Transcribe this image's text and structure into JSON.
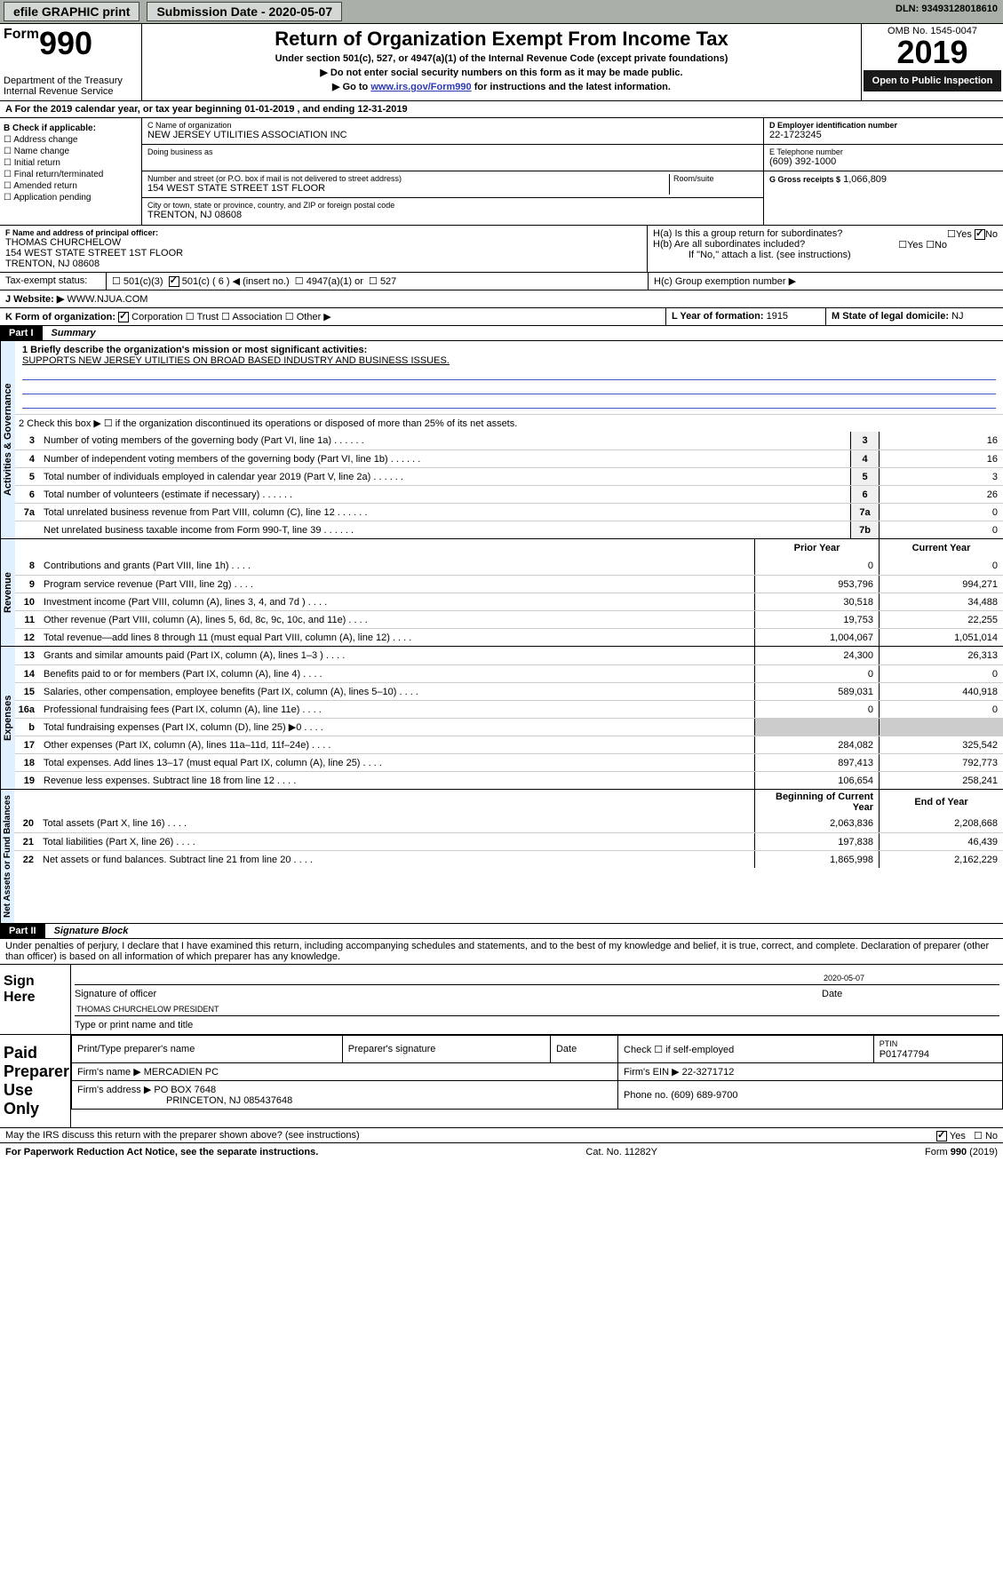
{
  "top": {
    "efile": "efile GRAPHIC print",
    "sub_label": "Submission Date - 2020-05-07",
    "dln": "DLN: 93493128018610"
  },
  "header": {
    "form_prefix": "Form",
    "form_num": "990",
    "dept": "Department of the Treasury Internal Revenue Service",
    "title": "Return of Organization Exempt From Income Tax",
    "sub1": "Under section 501(c), 527, or 4947(a)(1) of the Internal Revenue Code (except private foundations)",
    "sub2": "▶ Do not enter social security numbers on this form as it may be made public.",
    "sub3_pre": "▶ Go to ",
    "sub3_link": "www.irs.gov/Form990",
    "sub3_post": " for instructions and the latest information.",
    "omb": "OMB No. 1545-0047",
    "year": "2019",
    "inspect": "Open to Public Inspection"
  },
  "period": "A For the 2019 calendar year, or tax year beginning 01-01-2019    , and ending 12-31-2019",
  "checkB": {
    "title": "B Check if applicable:",
    "items": [
      "Address change",
      "Name change",
      "Initial return",
      "Final return/terminated",
      "Amended return",
      "Application pending"
    ]
  },
  "org": {
    "c_lbl": "C Name of organization",
    "c_val": "NEW JERSEY UTILITIES ASSOCIATION INC",
    "dba_lbl": "Doing business as",
    "addr_lbl": "Number and street (or P.O. box if mail is not delivered to street address)",
    "room_lbl": "Room/suite",
    "addr_val": "154 WEST STATE STREET 1ST FLOOR",
    "city_lbl": "City or town, state or province, country, and ZIP or foreign postal code",
    "city_val": "TRENTON, NJ  08608"
  },
  "boxD": {
    "lbl": "D Employer identification number",
    "val": "22-1723245"
  },
  "boxE": {
    "lbl": "E Telephone number",
    "val": "(609) 392-1000"
  },
  "boxG": {
    "lbl": "G Gross receipts $",
    "val": "1,066,809"
  },
  "officer": {
    "lbl": "F  Name and address of principal officer:",
    "name": "THOMAS CHURCHELOW",
    "addr1": "154 WEST STATE STREET 1ST FLOOR",
    "addr2": "TRENTON, NJ  08608"
  },
  "boxH": {
    "a": "H(a)  Is this a group return for subordinates?",
    "b": "H(b)  Are all subordinates included?",
    "note": "If \"No,\" attach a list. (see instructions)",
    "c": "H(c)  Group exemption number ▶",
    "yes": "Yes",
    "no": "No"
  },
  "taxStatus": {
    "lbl": "Tax-exempt status:",
    "o1": "501(c)(3)",
    "o2": "501(c) ( 6 ) ◀ (insert no.)",
    "o3": "4947(a)(1) or",
    "o4": "527"
  },
  "boxJ": {
    "lbl": "J Website: ▶",
    "val": "WWW.NJUA.COM"
  },
  "boxK": {
    "lbl": "K Form of organization:",
    "o1": "Corporation",
    "o2": "Trust",
    "o3": "Association",
    "o4": "Other ▶"
  },
  "boxL": {
    "lbl": "L Year of formation:",
    "val": "1915"
  },
  "boxM": {
    "lbl": "M State of legal domicile:",
    "val": "NJ"
  },
  "part1": {
    "bar": "Part I",
    "title": "Summary"
  },
  "summary": {
    "l1_lbl": "1  Briefly describe the organization's mission or most significant activities:",
    "l1_val": "SUPPORTS NEW JERSEY UTILITIES ON BROAD BASED INDUSTRY AND BUSINESS ISSUES.",
    "l2": "2   Check this box ▶ ☐  if the organization discontinued its operations or disposed of more than 25% of its net assets.",
    "activities_tab": "Activities & Governance",
    "revenue_tab": "Revenue",
    "expenses_tab": "Expenses",
    "netassets_tab": "Net Assets or Fund Balances",
    "col_prior": "Prior Year",
    "col_curr": "Current Year",
    "col_begin": "Beginning of Current Year",
    "col_end": "End of Year",
    "lines_single": [
      {
        "n": "3",
        "t": "Number of voting members of the governing body (Part VI, line 1a)",
        "b": "3",
        "v": "16"
      },
      {
        "n": "4",
        "t": "Number of independent voting members of the governing body (Part VI, line 1b)",
        "b": "4",
        "v": "16"
      },
      {
        "n": "5",
        "t": "Total number of individuals employed in calendar year 2019 (Part V, line 2a)",
        "b": "5",
        "v": "3"
      },
      {
        "n": "6",
        "t": "Total number of volunteers (estimate if necessary)",
        "b": "6",
        "v": "26"
      },
      {
        "n": "7a",
        "t": "Total unrelated business revenue from Part VIII, column (C), line 12",
        "b": "7a",
        "v": "0"
      },
      {
        "n": "",
        "t": "Net unrelated business taxable income from Form 990-T, line 39",
        "b": "7b",
        "v": "0"
      }
    ],
    "lines_revenue": [
      {
        "n": "8",
        "t": "Contributions and grants (Part VIII, line 1h)",
        "p": "0",
        "c": "0"
      },
      {
        "n": "9",
        "t": "Program service revenue (Part VIII, line 2g)",
        "p": "953,796",
        "c": "994,271"
      },
      {
        "n": "10",
        "t": "Investment income (Part VIII, column (A), lines 3, 4, and 7d )",
        "p": "30,518",
        "c": "34,488"
      },
      {
        "n": "11",
        "t": "Other revenue (Part VIII, column (A), lines 5, 6d, 8c, 9c, 10c, and 11e)",
        "p": "19,753",
        "c": "22,255"
      },
      {
        "n": "12",
        "t": "Total revenue—add lines 8 through 11 (must equal Part VIII, column (A), line 12)",
        "p": "1,004,067",
        "c": "1,051,014"
      }
    ],
    "lines_expenses": [
      {
        "n": "13",
        "t": "Grants and similar amounts paid (Part IX, column (A), lines 1–3 )",
        "p": "24,300",
        "c": "26,313"
      },
      {
        "n": "14",
        "t": "Benefits paid to or for members (Part IX, column (A), line 4)",
        "p": "0",
        "c": "0"
      },
      {
        "n": "15",
        "t": "Salaries, other compensation, employee benefits (Part IX, column (A), lines 5–10)",
        "p": "589,031",
        "c": "440,918"
      },
      {
        "n": "16a",
        "t": "Professional fundraising fees (Part IX, column (A), line 11e)",
        "p": "0",
        "c": "0"
      },
      {
        "n": "b",
        "t": "Total fundraising expenses (Part IX, column (D), line 25) ▶0",
        "p": "",
        "c": "",
        "gray": true
      },
      {
        "n": "17",
        "t": "Other expenses (Part IX, column (A), lines 11a–11d, 11f–24e)",
        "p": "284,082",
        "c": "325,542"
      },
      {
        "n": "18",
        "t": "Total expenses. Add lines 13–17 (must equal Part IX, column (A), line 25)",
        "p": "897,413",
        "c": "792,773"
      },
      {
        "n": "19",
        "t": "Revenue less expenses. Subtract line 18 from line 12",
        "p": "106,654",
        "c": "258,241"
      }
    ],
    "lines_netassets": [
      {
        "n": "20",
        "t": "Total assets (Part X, line 16)",
        "p": "2,063,836",
        "c": "2,208,668"
      },
      {
        "n": "21",
        "t": "Total liabilities (Part X, line 26)",
        "p": "197,838",
        "c": "46,439"
      },
      {
        "n": "22",
        "t": "Net assets or fund balances. Subtract line 21 from line 20",
        "p": "1,865,998",
        "c": "2,162,229"
      }
    ]
  },
  "part2": {
    "bar": "Part II",
    "title": "Signature Block"
  },
  "penalty": "Under penalties of perjury, I declare that I have examined this return, including accompanying schedules and statements, and to the best of my knowledge and belief, it is true, correct, and complete. Declaration of preparer (other than officer) is based on all information of which preparer has any knowledge.",
  "sign": {
    "here": "Sign Here",
    "sig_lbl": "Signature of officer",
    "date": "2020-05-07",
    "date_lbl": "Date",
    "name": "THOMAS CHURCHELOW  PRESIDENT",
    "name_lbl": "Type or print name and title"
  },
  "paid": {
    "here": "Paid Preparer Use Only",
    "c1": "Print/Type preparer's name",
    "c2": "Preparer's signature",
    "c3": "Date",
    "c4": "Check ☐ if self-employed",
    "c5_lbl": "PTIN",
    "c5": "P01747794",
    "firm_lbl": "Firm's name    ▶",
    "firm": "MERCADIEN PC",
    "ein_lbl": "Firm's EIN ▶",
    "ein": "22-3271712",
    "addr_lbl": "Firm's address ▶",
    "addr1": "PO BOX 7648",
    "addr2": "PRINCETON, NJ  085437648",
    "phone_lbl": "Phone no.",
    "phone": "(609) 689-9700"
  },
  "discuss": "May the IRS discuss this return with the preparer shown above? (see instructions)",
  "footer": {
    "l": "For Paperwork Reduction Act Notice, see the separate instructions.",
    "m": "Cat. No. 11282Y",
    "r": "Form 990 (2019)"
  }
}
